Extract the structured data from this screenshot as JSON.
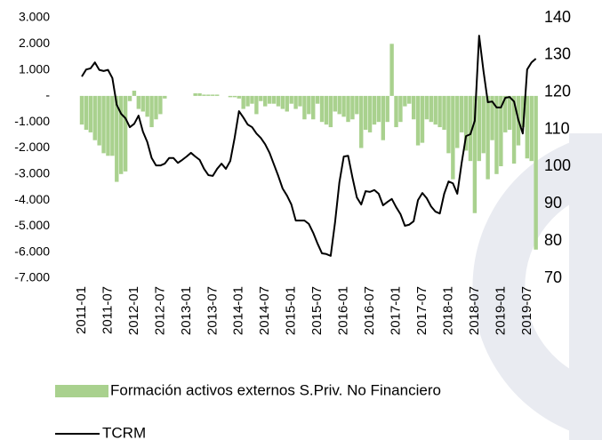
{
  "chart_data": {
    "type": "bar",
    "categories": [
      "2011-01",
      null,
      null,
      null,
      null,
      null,
      "2011-07",
      null,
      null,
      null,
      null,
      null,
      "2012-01",
      null,
      null,
      null,
      null,
      null,
      "2012-07",
      null,
      null,
      null,
      null,
      null,
      "2013-01",
      null,
      null,
      null,
      null,
      null,
      "2013-07",
      null,
      null,
      null,
      null,
      null,
      "2014-01",
      null,
      null,
      null,
      null,
      null,
      "2014-07",
      null,
      null,
      null,
      null,
      null,
      "2015-01",
      null,
      null,
      null,
      null,
      null,
      "2015-07",
      null,
      null,
      null,
      null,
      null,
      "2016-01",
      null,
      null,
      null,
      null,
      null,
      "2016-07",
      null,
      null,
      null,
      null,
      null,
      "2017-01",
      null,
      null,
      null,
      null,
      null,
      "2017-07",
      null,
      null,
      null,
      null,
      null,
      "2018-01",
      null,
      null,
      null,
      null,
      null,
      "2018-07",
      null,
      null,
      null,
      null,
      null,
      "2019-01",
      null,
      null,
      null,
      null,
      null,
      "2019-07",
      null,
      null
    ],
    "series": [
      {
        "name": "Formación activos externos S.Priv. No Financiero",
        "type": "bar",
        "color": "#a9d18e",
        "axis": "y",
        "values": [
          -1100,
          -1300,
          -1400,
          -1700,
          -1900,
          -2200,
          -2300,
          -2300,
          -3300,
          -3000,
          -2900,
          -200,
          200,
          -500,
          -600,
          -800,
          -1200,
          -900,
          -700,
          -100,
          0,
          0,
          0,
          0,
          0,
          0,
          100,
          100,
          50,
          50,
          50,
          50,
          0,
          0,
          -50,
          -50,
          -100,
          -500,
          -400,
          -300,
          -700,
          -200,
          -400,
          -300,
          -300,
          -400,
          -500,
          -600,
          -300,
          -500,
          -400,
          -900,
          -700,
          -900,
          -300,
          -1000,
          -1100,
          -1200,
          -600,
          -700,
          -800,
          -1000,
          -900,
          -700,
          -2000,
          -1300,
          -1400,
          -1100,
          -1000,
          -1700,
          -1000,
          2000,
          -1200,
          -1000,
          -400,
          -300,
          -900,
          -1900,
          -1800,
          -900,
          -1000,
          -1100,
          -1200,
          -1300,
          -2200,
          -3200,
          -2000,
          -1400,
          -2100,
          -2500,
          -4500,
          -2500,
          -2200,
          -3200,
          -1700,
          -3000,
          -2700,
          -1400,
          -1300,
          -2600,
          -1900,
          -1200,
          -2400,
          -2500,
          -5900
        ]
      },
      {
        "name": "TCRM",
        "type": "line",
        "color": "#000000",
        "axis": "y2",
        "values": [
          124.2,
          126.1,
          126.4,
          128,
          126,
          125.7,
          126,
          123.8,
          116.6,
          114.2,
          113,
          110.6,
          111.5,
          113.7,
          109.4,
          106.6,
          102.3,
          100.3,
          100.3,
          100.8,
          102.3,
          102.3,
          101,
          101.8,
          102.7,
          103.7,
          102.7,
          101.8,
          99.4,
          97.7,
          97.5,
          99.4,
          100.8,
          99.4,
          101.5,
          107.7,
          114.9,
          113.2,
          111.3,
          110.6,
          108.9,
          107.7,
          106,
          103.7,
          100.6,
          97.5,
          94.1,
          92.2,
          89.8,
          85.5,
          85.5,
          85.5,
          84.6,
          82.2,
          79.3,
          76.7,
          76.5,
          76,
          85,
          95.8,
          102.7,
          102.9,
          97,
          91.7,
          89.8,
          93.4,
          93.2,
          93.7,
          92.7,
          89.6,
          90.5,
          91.3,
          89.1,
          87.2,
          84.1,
          84.4,
          85.3,
          91,
          92.9,
          91.5,
          89.3,
          87.9,
          87.4,
          92.7,
          96,
          95.5,
          92.7,
          101,
          108.2,
          108.7,
          112.3,
          135.2,
          125.7,
          117.3,
          117.5,
          115.9,
          115.9,
          118.5,
          118.7,
          117.5,
          112.5,
          108.9,
          126.1,
          128,
          129
        ]
      }
    ],
    "ylim": [
      -7000,
      3000
    ],
    "yticks": [
      {
        "value": -7000,
        "label": "-7.000"
      },
      {
        "value": -6000,
        "label": "-6.000"
      },
      {
        "value": -5000,
        "label": "-5.000"
      },
      {
        "value": -4000,
        "label": "-4.000"
      },
      {
        "value": -3000,
        "label": "-3.000"
      },
      {
        "value": -2000,
        "label": "-2.000"
      },
      {
        "value": -1000,
        "label": "-1.000"
      },
      {
        "value": 0,
        "label": "-"
      },
      {
        "value": 1000,
        "label": "1.000"
      },
      {
        "value": 2000,
        "label": "2.000"
      },
      {
        "value": 3000,
        "label": "3.000"
      }
    ],
    "y2lim": [
      70,
      140
    ],
    "y2ticks": [
      70,
      80,
      90,
      100,
      110,
      120,
      130,
      140
    ],
    "grid": false,
    "legend": "bottom"
  }
}
